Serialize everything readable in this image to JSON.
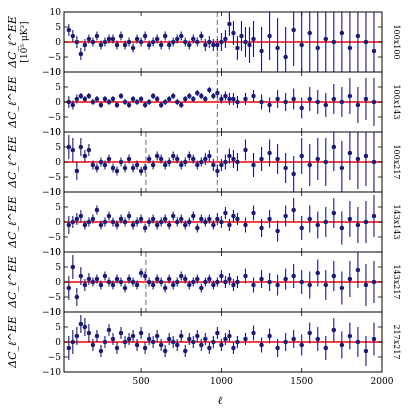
{
  "chart_data": {
    "type": "scatter",
    "xlabel": "ℓ",
    "xlim": [
      20,
      2000
    ],
    "x_ticks": [
      "500",
      "1000",
      "1500",
      "2000"
    ],
    "ylim": [
      -10,
      10
    ],
    "y_ticks": [
      "−10",
      "−5",
      "0",
      "5",
      "10"
    ],
    "zero_line_color": "#ff0000",
    "point_color": "#1a1a7a",
    "dash_color": "#888888",
    "ylabel_main": "ΔC_ℓ^EE",
    "ylabel_units_panel0": "[10⁵ μK²]",
    "panels": [
      {
        "label": "100x100",
        "dashes": [
          975
        ],
        "x": [
          50,
          75,
          100,
          125,
          150,
          175,
          200,
          225,
          250,
          275,
          300,
          325,
          350,
          375,
          400,
          425,
          450,
          475,
          500,
          525,
          550,
          575,
          600,
          625,
          650,
          675,
          700,
          725,
          750,
          775,
          800,
          825,
          850,
          875,
          900,
          925,
          950,
          975,
          1000,
          1025,
          1050,
          1075,
          1100,
          1125,
          1150,
          1175,
          1200,
          1250,
          1300,
          1350,
          1400,
          1450,
          1500,
          1550,
          1600,
          1650,
          1700,
          1750,
          1800,
          1850,
          1900,
          1950
        ],
        "y": [
          4,
          2,
          0,
          -4,
          -1,
          1,
          0,
          2,
          -1,
          0,
          1,
          1,
          -1,
          2,
          -1,
          0,
          -2,
          1,
          0,
          2,
          -1,
          0,
          1,
          -1,
          2,
          -1,
          0,
          1,
          2,
          0,
          -1,
          1,
          0,
          2,
          -1,
          0,
          -1,
          -1,
          0,
          1,
          6,
          3,
          -2,
          2,
          0,
          -1,
          1,
          -3,
          2,
          -2,
          -5,
          4,
          -1,
          3,
          -2,
          1,
          0,
          3,
          -2,
          2,
          0,
          -3
        ],
        "err": [
          2,
          2,
          2,
          2,
          2,
          1.5,
          1.5,
          1.5,
          1.5,
          1.5,
          1.5,
          1.5,
          1.5,
          1.5,
          1.5,
          1.5,
          1.5,
          1.5,
          1.5,
          1.5,
          1.5,
          1.5,
          1.5,
          1.5,
          1.5,
          1.5,
          1.5,
          1.5,
          1.5,
          1.5,
          1.5,
          1.5,
          1.5,
          1.5,
          2,
          2,
          2,
          2,
          3,
          3,
          4,
          4,
          4,
          5,
          5,
          6,
          6,
          8,
          8,
          10,
          10,
          12,
          12,
          14,
          14,
          16,
          16,
          18,
          18,
          20,
          20,
          22
        ]
      },
      {
        "label": "100x143",
        "dashes": [
          975
        ],
        "x": [
          50,
          75,
          100,
          125,
          150,
          175,
          200,
          225,
          250,
          275,
          300,
          325,
          350,
          375,
          400,
          425,
          450,
          475,
          500,
          525,
          550,
          575,
          600,
          625,
          650,
          675,
          700,
          725,
          750,
          775,
          800,
          825,
          850,
          875,
          900,
          925,
          950,
          975,
          1000,
          1025,
          1050,
          1075,
          1100,
          1150,
          1200,
          1250,
          1300,
          1350,
          1400,
          1450,
          1500,
          1550,
          1600,
          1650,
          1700,
          1750,
          1800,
          1850,
          1900,
          1950
        ],
        "y": [
          0,
          -1,
          1,
          2,
          1,
          2,
          0,
          1,
          -1,
          1,
          0,
          1,
          -1,
          2,
          0,
          -1,
          1,
          0,
          1,
          -1,
          0,
          2,
          1,
          -1,
          0,
          1,
          2,
          0,
          -1,
          1,
          2,
          1,
          3,
          2,
          1,
          4,
          2,
          3,
          1,
          2,
          1,
          1,
          0,
          1,
          2,
          0,
          -1,
          1,
          0,
          1,
          -2,
          1,
          0,
          -1,
          1,
          0,
          2,
          -1,
          1,
          0
        ],
        "err": [
          2,
          1.5,
          1.5,
          1,
          1,
          1,
          1,
          1,
          1,
          1,
          1,
          1,
          1,
          1,
          1,
          1,
          1,
          1,
          1,
          1,
          1,
          1,
          1,
          1,
          1,
          1,
          1,
          1,
          1,
          1,
          1,
          1,
          1,
          1,
          1,
          1,
          1,
          1.5,
          1.5,
          1.5,
          2,
          2,
          2,
          2,
          2,
          2.5,
          2.5,
          3,
          3,
          3.5,
          3.5,
          4,
          4,
          4,
          5,
          5,
          6,
          6,
          7,
          8
        ]
      },
      {
        "label": "100x217",
        "dashes": [
          530,
          975
        ],
        "x": [
          50,
          75,
          100,
          125,
          150,
          175,
          200,
          225,
          250,
          275,
          300,
          325,
          350,
          375,
          400,
          425,
          450,
          475,
          500,
          525,
          550,
          575,
          600,
          625,
          650,
          675,
          700,
          725,
          750,
          775,
          800,
          825,
          850,
          875,
          900,
          925,
          950,
          975,
          1000,
          1025,
          1050,
          1075,
          1100,
          1150,
          1200,
          1250,
          1300,
          1350,
          1400,
          1450,
          1500,
          1550,
          1600,
          1650,
          1700,
          1750,
          1800,
          1850,
          1900,
          1950
        ],
        "y": [
          5,
          4,
          -3,
          5,
          2,
          4,
          -1,
          -2,
          0,
          -1,
          1,
          -2,
          -3,
          0,
          -2,
          1,
          -2,
          -1,
          -3,
          -2,
          1,
          -1,
          2,
          1,
          -1,
          0,
          2,
          1,
          -1,
          0,
          2,
          1,
          -1,
          0,
          1,
          2,
          -1,
          -3,
          -1,
          0,
          2,
          1,
          0,
          4,
          -1,
          1,
          3,
          1,
          -2,
          -4,
          2,
          -1,
          1,
          0,
          5,
          -2,
          3,
          1,
          2,
          0
        ],
        "err": [
          4,
          4,
          3,
          3,
          2,
          2,
          1.5,
          1.5,
          1.5,
          1.5,
          1.5,
          1.5,
          1.5,
          1.5,
          1.5,
          1.5,
          1.5,
          1.5,
          1.5,
          1.5,
          1.5,
          1.5,
          1.5,
          1.5,
          1.5,
          1.5,
          1.5,
          1.5,
          1.5,
          1.5,
          1.5,
          1.5,
          1.5,
          1.5,
          2,
          2,
          2,
          2,
          2,
          2.5,
          2.5,
          3,
          3,
          3.5,
          4,
          4,
          4.5,
          5,
          5,
          6,
          6,
          7,
          7,
          8,
          8,
          9,
          9,
          10,
          10,
          12
        ]
      },
      {
        "label": "143x143",
        "dashes": [],
        "x": [
          50,
          75,
          100,
          125,
          150,
          175,
          200,
          225,
          250,
          275,
          300,
          325,
          350,
          375,
          400,
          425,
          450,
          475,
          500,
          525,
          550,
          575,
          600,
          625,
          650,
          675,
          700,
          725,
          750,
          775,
          800,
          825,
          850,
          875,
          900,
          925,
          950,
          975,
          1000,
          1025,
          1050,
          1075,
          1100,
          1150,
          1200,
          1250,
          1300,
          1350,
          1400,
          1450,
          1500,
          1550,
          1600,
          1650,
          1700,
          1750,
          1800,
          1850,
          1900,
          1950
        ],
        "y": [
          -1,
          0,
          1,
          2,
          -1,
          0,
          1,
          4,
          -1,
          0,
          2,
          0,
          -1,
          1,
          0,
          2,
          -1,
          0,
          1,
          -2,
          0,
          1,
          -1,
          0,
          1,
          -1,
          2,
          0,
          1,
          -1,
          0,
          2,
          -2,
          1,
          0,
          1,
          -1,
          1,
          0,
          3,
          -1,
          2,
          1,
          -1,
          3,
          -2,
          1,
          -3,
          2,
          4,
          -2,
          1,
          -1,
          0,
          3,
          -2,
          1,
          -1,
          0,
          2
        ],
        "err": [
          3,
          2,
          2,
          2,
          1.5,
          1.5,
          1.5,
          1.5,
          1.5,
          1.5,
          1.5,
          1.5,
          1.5,
          1.5,
          1.5,
          1.5,
          1.5,
          1.5,
          1.5,
          1.5,
          1.5,
          1.5,
          1.5,
          1.5,
          1.5,
          1.5,
          1.5,
          1.5,
          1.5,
          1.5,
          1.5,
          1.5,
          1.5,
          1.5,
          1.5,
          1.5,
          1.5,
          2,
          2,
          2,
          2,
          2,
          2,
          2.5,
          2.5,
          3,
          3,
          3.5,
          3.5,
          4,
          4,
          4.5,
          4.5,
          5,
          5,
          5.5,
          6,
          6,
          7,
          7
        ]
      },
      {
        "label": "143x217",
        "dashes": [
          530
        ],
        "x": [
          50,
          75,
          100,
          125,
          150,
          175,
          200,
          225,
          250,
          275,
          300,
          325,
          350,
          375,
          400,
          425,
          450,
          475,
          500,
          525,
          550,
          575,
          600,
          625,
          650,
          675,
          700,
          725,
          750,
          775,
          800,
          825,
          850,
          875,
          900,
          925,
          950,
          975,
          1000,
          1025,
          1050,
          1075,
          1100,
          1150,
          1200,
          1250,
          1300,
          1350,
          1400,
          1450,
          1500,
          1550,
          1600,
          1650,
          1700,
          1750,
          1800,
          1850,
          1900,
          1950
        ],
        "y": [
          -2,
          5,
          -5,
          2,
          -1,
          1,
          0,
          1,
          -1,
          2,
          0,
          -1,
          1,
          0,
          -2,
          1,
          0,
          -1,
          3,
          2,
          0,
          -1,
          1,
          0,
          -2,
          1,
          -1,
          0,
          2,
          1,
          -1,
          0,
          1,
          -2,
          0,
          1,
          -1,
          0,
          2,
          0,
          1,
          -1,
          0,
          2,
          -1,
          1,
          0,
          -1,
          1,
          2,
          0,
          -1,
          3,
          -1,
          2,
          -2,
          1,
          4,
          -1,
          0
        ],
        "err": [
          4,
          4,
          3,
          3,
          2,
          2,
          1.5,
          1.5,
          1.5,
          1.5,
          1.5,
          1.5,
          1.5,
          1.5,
          1.5,
          1.5,
          1.5,
          1.5,
          1.5,
          1.5,
          1.5,
          1.5,
          1.5,
          1.5,
          1.5,
          1.5,
          1.5,
          1.5,
          1.5,
          1.5,
          1.5,
          1.5,
          1.5,
          1.5,
          1.5,
          1.5,
          1.5,
          1.5,
          2,
          2,
          2,
          2,
          2,
          2.5,
          2.5,
          3,
          3,
          3.5,
          3.5,
          4,
          4,
          4.5,
          4.5,
          5,
          5,
          5.5,
          6,
          6,
          7,
          7
        ]
      },
      {
        "label": "217x217",
        "dashes": [],
        "x": [
          50,
          75,
          100,
          125,
          150,
          175,
          200,
          225,
          250,
          275,
          300,
          325,
          350,
          375,
          400,
          425,
          450,
          475,
          500,
          525,
          550,
          575,
          600,
          625,
          650,
          675,
          700,
          725,
          750,
          775,
          800,
          825,
          850,
          875,
          900,
          925,
          950,
          975,
          1000,
          1025,
          1050,
          1075,
          1100,
          1150,
          1200,
          1250,
          1300,
          1350,
          1400,
          1450,
          1500,
          1550,
          1600,
          1650,
          1700,
          1750,
          1800,
          1850,
          1900,
          1950
        ],
        "y": [
          -2,
          0,
          2,
          6,
          5,
          3,
          -1,
          2,
          -3,
          0,
          4,
          1,
          -2,
          3,
          0,
          1,
          2,
          -1,
          3,
          -2,
          1,
          0,
          2,
          -1,
          -3,
          1,
          0,
          -1,
          2,
          -3,
          1,
          0,
          2,
          -1,
          1,
          -2,
          0,
          3,
          -1,
          1,
          2,
          -2,
          0,
          1,
          3,
          -1,
          2,
          -2,
          0,
          1,
          -1,
          3,
          1,
          -2,
          4,
          -1,
          2,
          0,
          -3,
          1
        ],
        "err": [
          4,
          4,
          3,
          3,
          3,
          3,
          2,
          2,
          2,
          2,
          2,
          2,
          2,
          2,
          2,
          2,
          2,
          2,
          2,
          2,
          2,
          2,
          2,
          2,
          2,
          2,
          2,
          2,
          2,
          2,
          2,
          2,
          2,
          2,
          2,
          2,
          2,
          2,
          2,
          2,
          2,
          2,
          2,
          2,
          2.5,
          2.5,
          2.5,
          3,
          3,
          3,
          3.5,
          3.5,
          4,
          4,
          4,
          4.5,
          4.5,
          5,
          5,
          5.5
        ]
      }
    ]
  }
}
